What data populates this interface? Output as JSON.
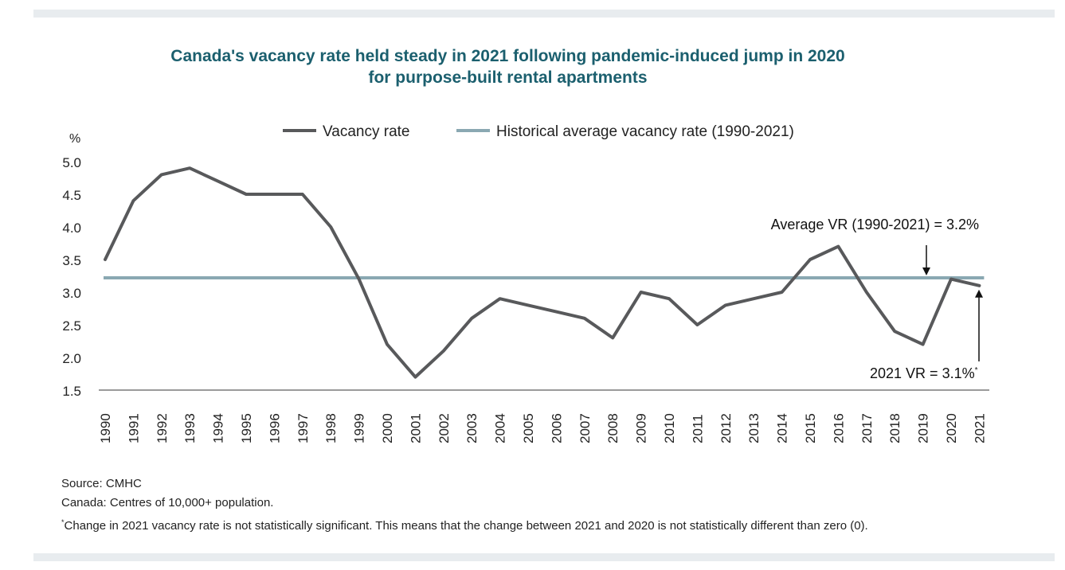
{
  "header": {
    "title_line1": "Canada's vacancy rate held steady in 2021 following pandemic-induced jump in 2020",
    "title_line2": "for purpose-built rental apartments"
  },
  "colors": {
    "title": "#1b5f6e",
    "vacancy_line": "#58595b",
    "average_line": "#8aa8b2",
    "axis": "#9a9a9a"
  },
  "chart_data": {
    "type": "line",
    "ylabel": "%",
    "ylim": [
      1.5,
      5.0
    ],
    "yticks": [
      "5.0",
      "4.5",
      "4.0",
      "3.5",
      "3.0",
      "2.5",
      "2.0",
      "1.5"
    ],
    "x": [
      "1990",
      "1991",
      "1992",
      "1993",
      "1994",
      "1995",
      "1996",
      "1997",
      "1998",
      "1999",
      "2000",
      "2001",
      "2002",
      "2003",
      "2004",
      "2005",
      "2006",
      "2007",
      "2008",
      "2009",
      "2010",
      "2011",
      "2012",
      "2013",
      "2014",
      "2015",
      "2016",
      "2017",
      "2018",
      "2019",
      "2020",
      "2021"
    ],
    "series": [
      {
        "name": "Vacancy rate",
        "values": [
          3.5,
          4.4,
          4.8,
          4.9,
          4.7,
          4.5,
          4.5,
          4.5,
          4.0,
          3.2,
          2.2,
          1.7,
          2.1,
          2.6,
          2.9,
          2.8,
          2.7,
          2.6,
          2.3,
          3.0,
          2.9,
          2.5,
          2.8,
          2.9,
          3.0,
          3.5,
          3.7,
          3.0,
          2.4,
          2.2,
          3.2,
          3.1
        ]
      },
      {
        "name": "Historical average vacancy rate (1990-2021)",
        "value": 3.22
      }
    ],
    "annotations": {
      "average_label": "Average VR (1990-2021) = 3.2%",
      "latest_label": "2021 VR = 3.1%",
      "latest_footnote_mark": "*"
    }
  },
  "notes": {
    "source": "Source: CMHC",
    "scope": "Canada: Centres of 10,000+ population.",
    "footnote_mark": "*",
    "footnote": "Change in 2021 vacancy rate is not statistically significant. This means that the change between 2021 and 2020 is not statistically different than zero (0)."
  }
}
